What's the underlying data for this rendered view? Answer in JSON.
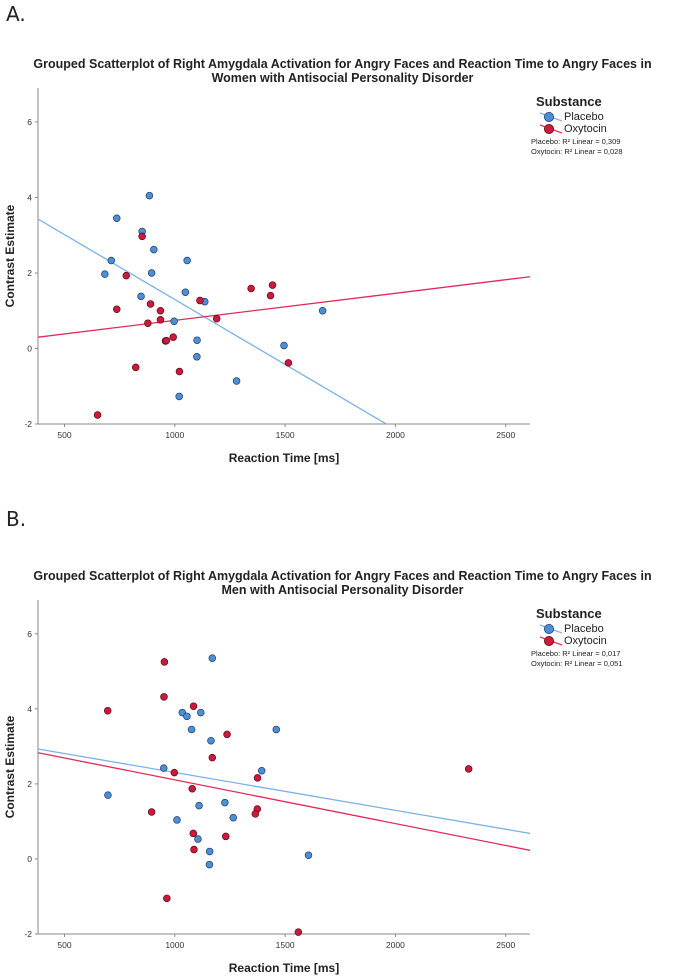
{
  "colors": {
    "placebo": "#4d8fd6",
    "oxytocin": "#cc1a3c",
    "placebo_line": "#7ab1e8",
    "oxytocin_line": "#e22a57"
  },
  "panels": [
    {
      "label": "A.",
      "title_lines": [
        "Grouped Scatterplot of Right Amygdala Activation for Angry Faces and Reaction Time to Angry Faces in",
        "Women with Antisocial Personality Disorder"
      ],
      "legend": {
        "title": "Substance",
        "items": [
          "Placebo",
          "Oxytocin"
        ],
        "notes": [
          "Placebo: R² Linear = 0,309",
          "Oxytocin: R² Linear = 0,028"
        ]
      }
    },
    {
      "label": "B.",
      "title_lines": [
        "Grouped Scatterplot of Right Amygdala Activation for Angry Faces and Reaction Time to Angry Faces in",
        "Men with Antisocial Personality Disorder"
      ],
      "legend": {
        "title": "Substance",
        "items": [
          "Placebo",
          "Oxytocin"
        ],
        "notes": [
          "Placebo: R² Linear = 0,017",
          "Oxytocin: R² Linear = 0,051"
        ]
      }
    }
  ],
  "chart_data": [
    {
      "type": "scatter",
      "title": "Grouped Scatterplot of Right Amygdala Activation for Angry Faces and Reaction Time to Angry Faces in Women with Antisocial Personality Disorder",
      "xlabel": "Reaction Time [ms]",
      "ylabel": "Contrast Estimate",
      "xlim": [
        380,
        2610
      ],
      "ylim": [
        -2,
        6.9
      ],
      "xticks": [
        500,
        1000,
        1500,
        2000,
        2500
      ],
      "yticks": [
        -2,
        0,
        2,
        4,
        6
      ],
      "legend_position": "top-right",
      "grid": false,
      "series": [
        {
          "name": "Placebo",
          "points": [
            [
              885,
              4.05
            ],
            [
              737,
              3.45
            ],
            [
              852,
              3.1
            ],
            [
              905,
              2.62
            ],
            [
              712,
              2.33
            ],
            [
              1056,
              2.33
            ],
            [
              683,
              1.97
            ],
            [
              895,
              2.0
            ],
            [
              1048,
              1.49
            ],
            [
              847,
              1.38
            ],
            [
              1136,
              1.24
            ],
            [
              1670,
              1.0
            ],
            [
              997,
              0.72
            ],
            [
              1101,
              0.22
            ],
            [
              1495,
              0.08
            ],
            [
              1100,
              -0.22
            ],
            [
              1280,
              -0.86
            ],
            [
              1020,
              -1.27
            ]
          ],
          "fit": [
            [
              380,
              3.43
            ],
            [
              2610,
              -4.24
            ]
          ]
        },
        {
          "name": "Oxytocin",
          "points": [
            [
              852,
              2.97
            ],
            [
              780,
              1.93
            ],
            [
              1346,
              1.59
            ],
            [
              1443,
              1.68
            ],
            [
              1434,
              1.4
            ],
            [
              1114,
              1.27
            ],
            [
              890,
              1.18
            ],
            [
              737,
              1.04
            ],
            [
              935,
              1.0
            ],
            [
              1190,
              0.79
            ],
            [
              935,
              0.76
            ],
            [
              878,
              0.67
            ],
            [
              993,
              0.3
            ],
            [
              958,
              0.2
            ],
            [
              962,
              0.21
            ],
            [
              1515,
              -0.38
            ],
            [
              1021,
              -0.61
            ],
            [
              823,
              -0.5
            ],
            [
              650,
              -1.76
            ]
          ],
          "fit": [
            [
              380,
              0.3
            ],
            [
              2610,
              1.9
            ]
          ]
        }
      ]
    },
    {
      "type": "scatter",
      "title": "Grouped Scatterplot of Right Amygdala Activation for Angry Faces and Reaction Time to Angry Faces in Men with Antisocial Personality Disorder",
      "xlabel": "Reaction Time [ms]",
      "ylabel": "Contrast Estimate",
      "xlim": [
        380,
        2610
      ],
      "ylim": [
        -2,
        6.9
      ],
      "xticks": [
        500,
        1000,
        1500,
        2000,
        2500
      ],
      "yticks": [
        -2,
        0,
        2,
        4,
        6
      ],
      "legend_position": "top-right",
      "grid": false,
      "series": [
        {
          "name": "Placebo",
          "points": [
            [
              1170,
              5.35
            ],
            [
              1034,
              3.9
            ],
            [
              1118,
              3.9
            ],
            [
              1055,
              3.8
            ],
            [
              1460,
              3.45
            ],
            [
              1076,
              3.45
            ],
            [
              1164,
              3.15
            ],
            [
              1394,
              2.35
            ],
            [
              950,
              2.42
            ],
            [
              697,
              1.7
            ],
            [
              1227,
              1.5
            ],
            [
              1110,
              1.42
            ],
            [
              1265,
              1.1
            ],
            [
              1010,
              1.04
            ],
            [
              1105,
              0.53
            ],
            [
              1158,
              0.2
            ],
            [
              1606,
              0.1
            ],
            [
              1157,
              -0.15
            ]
          ],
          "fit": [
            [
              380,
              2.93
            ],
            [
              2610,
              0.68
            ]
          ]
        },
        {
          "name": "Oxytocin",
          "points": [
            [
              953,
              5.25
            ],
            [
              951,
              4.32
            ],
            [
              696,
              3.95
            ],
            [
              1085,
              4.07
            ],
            [
              1237,
              3.32
            ],
            [
              1170,
              2.7
            ],
            [
              2332,
              2.4
            ],
            [
              998,
              2.3
            ],
            [
              1375,
              2.16
            ],
            [
              1079,
              1.87
            ],
            [
              1374,
              1.33
            ],
            [
              1365,
              1.2
            ],
            [
              895,
              1.25
            ],
            [
              1084,
              0.68
            ],
            [
              1231,
              0.6
            ],
            [
              1087,
              0.25
            ],
            [
              964,
              -1.05
            ],
            [
              1560,
              -1.95
            ]
          ],
          "fit": [
            [
              380,
              2.83
            ],
            [
              2610,
              0.23
            ]
          ]
        }
      ]
    }
  ]
}
